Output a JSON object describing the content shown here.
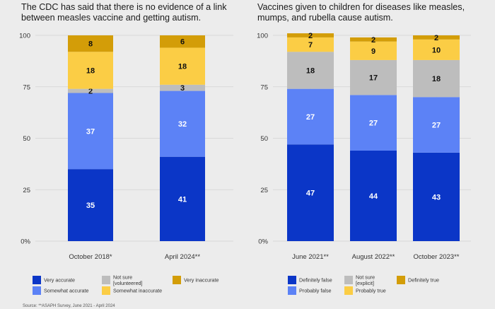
{
  "chart_data": [
    {
      "type": "bar",
      "stacked": true,
      "title": "The CDC has said that there is no evidence of a link between measles vaccine and getting autism.",
      "categories": [
        "October 2018*",
        "April 2024**"
      ],
      "ylim": [
        0,
        100
      ],
      "yticks": [
        "0%",
        "25",
        "50",
        "75",
        "100"
      ],
      "grid": true,
      "series": [
        {
          "name": "Very accurate",
          "color": "#0b36c7",
          "label_color": "#ffffff",
          "values": [
            35,
            41
          ]
        },
        {
          "name": "Somewhat accurate",
          "color": "#5c82f6",
          "label_color": "#ffffff",
          "values": [
            37,
            32
          ]
        },
        {
          "name": "Not sure [volunteered]",
          "color": "#bdbdbd",
          "label_color": "#111111",
          "values": [
            2,
            3
          ]
        },
        {
          "name": "Somewhat inaccurate",
          "color": "#fbcd45",
          "label_color": "#111111",
          "values": [
            18,
            18
          ]
        },
        {
          "name": "Very inaccurate",
          "color": "#d39d08",
          "label_color": "#111111",
          "values": [
            8,
            6
          ]
        }
      ],
      "legend": {
        "position": "bottom",
        "items": [
          {
            "lines": [
              "Very accurate"
            ],
            "color": "#0b36c7"
          },
          {
            "lines": [
              "Not sure",
              "[volunteered]"
            ],
            "color": "#bdbdbd"
          },
          {
            "lines": [
              "Very inaccurate"
            ],
            "color": "#d39d08"
          },
          {
            "lines": [
              "Somewhat accurate"
            ],
            "color": "#5c82f6"
          },
          {
            "lines": [
              "Somewhat inaccurate"
            ],
            "color": "#fbcd45"
          }
        ]
      }
    },
    {
      "type": "bar",
      "stacked": true,
      "title": "Vaccines given to children for diseases like measles, mumps, and rubella cause autism.",
      "categories": [
        "June 2021**",
        "August 2022**",
        "October 2023**"
      ],
      "ylim": [
        0,
        100
      ],
      "yticks": [
        "0%",
        "25",
        "50",
        "75",
        "100"
      ],
      "grid": true,
      "series": [
        {
          "name": "Definitely false",
          "color": "#0b36c7",
          "label_color": "#ffffff",
          "values": [
            47,
            44,
            43
          ]
        },
        {
          "name": "Probably false",
          "color": "#5c82f6",
          "label_color": "#ffffff",
          "values": [
            27,
            27,
            27
          ]
        },
        {
          "name": "Not sure [explicit]",
          "color": "#bdbdbd",
          "label_color": "#111111",
          "values": [
            18,
            17,
            18
          ]
        },
        {
          "name": "Probably true",
          "color": "#fbcd45",
          "label_color": "#111111",
          "values": [
            7,
            9,
            10
          ]
        },
        {
          "name": "Definitely true",
          "color": "#d39d08",
          "label_color": "#111111",
          "values": [
            2,
            2,
            2
          ]
        }
      ],
      "legend": {
        "position": "bottom",
        "items": [
          {
            "lines": [
              "Definitely false"
            ],
            "color": "#0b36c7"
          },
          {
            "lines": [
              "Not sure",
              "[explicit]"
            ],
            "color": "#bdbdbd"
          },
          {
            "lines": [
              "Definitely true"
            ],
            "color": "#d39d08"
          },
          {
            "lines": [
              "Probably false"
            ],
            "color": "#5c82f6"
          },
          {
            "lines": [
              "Probably true"
            ],
            "color": "#fbcd45"
          }
        ]
      }
    }
  ],
  "source": "Source: **ASAPH Survey, June 2021 - April 2024"
}
